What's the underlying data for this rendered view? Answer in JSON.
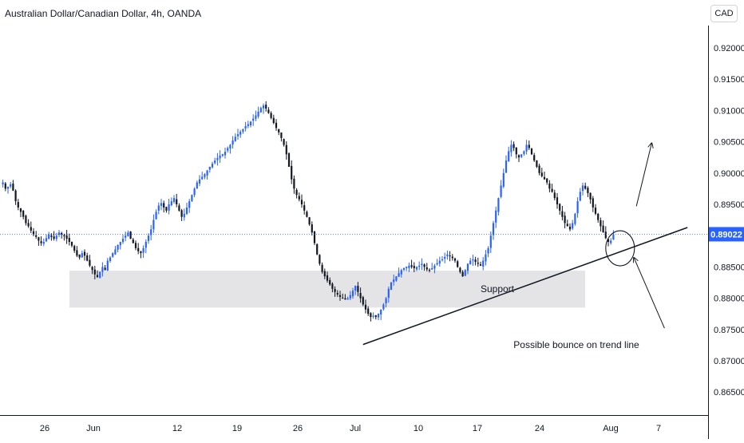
{
  "header": {
    "title": "Australian Dollar/Canadian Dollar, 4h, OANDA",
    "currency_button": "CAD"
  },
  "chart_data": {
    "type": "candlestick",
    "symbol": "Australian Dollar/Canadian Dollar",
    "interval": "4h",
    "source": "OANDA",
    "ylim": [
      0.862,
      0.9225
    ],
    "yticks": [
      "0.92000",
      "0.91500",
      "0.91000",
      "0.90500",
      "0.90000",
      "0.89500",
      "0.89022",
      "0.88500",
      "0.88000",
      "0.87500",
      "0.87000",
      "0.86500"
    ],
    "current_price": 0.89022,
    "current_price_label": "0.89022",
    "x_tick_labels": [
      "26",
      "Jun",
      "12",
      "19",
      "26",
      "Jul",
      "10",
      "17",
      "24",
      "Aug",
      "7"
    ],
    "closes": [
      0.8985,
      0.8975,
      0.8978,
      0.8982,
      0.8972,
      0.8955,
      0.8945,
      0.8938,
      0.893,
      0.892,
      0.8915,
      0.8908,
      0.8902,
      0.8898,
      0.8892,
      0.8888,
      0.889,
      0.8896,
      0.8902,
      0.8898,
      0.8895,
      0.89,
      0.8905,
      0.8902,
      0.8899,
      0.8895,
      0.889,
      0.8884,
      0.8876,
      0.8868,
      0.8865,
      0.8872,
      0.8868,
      0.886,
      0.8852,
      0.8845,
      0.8838,
      0.8834,
      0.8842,
      0.885,
      0.8845,
      0.886,
      0.8865,
      0.8872,
      0.8878,
      0.8885,
      0.889,
      0.8895,
      0.89,
      0.8905,
      0.8895,
      0.8888,
      0.888,
      0.8875,
      0.8872,
      0.888,
      0.889,
      0.89,
      0.891,
      0.8925,
      0.8938,
      0.8948,
      0.8952,
      0.8945,
      0.894,
      0.895,
      0.8955,
      0.896,
      0.895,
      0.894,
      0.893,
      0.8935,
      0.8945,
      0.8955,
      0.8965,
      0.8975,
      0.8985,
      0.899,
      0.8994,
      0.8998,
      0.9004,
      0.901,
      0.9015,
      0.902,
      0.9024,
      0.9028,
      0.903,
      0.9034,
      0.904,
      0.9045,
      0.9052,
      0.9058,
      0.9062,
      0.9066,
      0.907,
      0.9075,
      0.9078,
      0.9082,
      0.9087,
      0.9092,
      0.9098,
      0.9104,
      0.9108,
      0.9103,
      0.9096,
      0.9088,
      0.908,
      0.9072,
      0.9065,
      0.9056,
      0.9045,
      0.903,
      0.901,
      0.899,
      0.8975,
      0.8965,
      0.8958,
      0.895,
      0.894,
      0.893,
      0.8918,
      0.8905,
      0.8888,
      0.887,
      0.8855,
      0.8842,
      0.8835,
      0.8828,
      0.8822,
      0.8815,
      0.881,
      0.8806,
      0.8802,
      0.88,
      0.8798,
      0.88,
      0.8805,
      0.8812,
      0.882,
      0.881,
      0.88,
      0.879,
      0.8782,
      0.8775,
      0.877,
      0.8772,
      0.877,
      0.8775,
      0.8782,
      0.879,
      0.88,
      0.8815,
      0.8825,
      0.883,
      0.8835,
      0.884,
      0.8845,
      0.8848,
      0.885,
      0.8852,
      0.885,
      0.8848,
      0.885,
      0.8852,
      0.8855,
      0.885,
      0.8846,
      0.8844,
      0.8848,
      0.8852,
      0.8856,
      0.886,
      0.8862,
      0.8866,
      0.887,
      0.8868,
      0.8864,
      0.886,
      0.885,
      0.8842,
      0.8835,
      0.8845,
      0.8855,
      0.886,
      0.8862,
      0.8858,
      0.8855,
      0.8852,
      0.886,
      0.887,
      0.888,
      0.89,
      0.892,
      0.894,
      0.896,
      0.898,
      0.9,
      0.902,
      0.9035,
      0.9045,
      0.904,
      0.903,
      0.9025,
      0.903,
      0.9035,
      0.9045,
      0.904,
      0.903,
      0.902,
      0.901,
      0.9,
      0.8995,
      0.899,
      0.8985,
      0.8975,
      0.897,
      0.896,
      0.895,
      0.894,
      0.893,
      0.892,
      0.8915,
      0.891,
      0.892,
      0.8935,
      0.8955,
      0.897,
      0.898,
      0.8975,
      0.8968,
      0.8958,
      0.8945,
      0.8935,
      0.8925,
      0.8915,
      0.8905,
      0.8896,
      0.889,
      0.8892,
      0.8902
    ],
    "annotations": {
      "support_zone": {
        "top": 0.8844,
        "bottom": 0.8785,
        "label": "Support"
      },
      "trend_line": [
        {
          "bar": 141,
          "price": 0.8726
        },
        {
          "bar": 268,
          "price": 0.8913
        }
      ],
      "arrow_up": {
        "from": {
          "bar": 248,
          "price": 0.8947
        },
        "to": {
          "bar": 254,
          "price": 0.9048
        }
      },
      "arrow_down": {
        "from": {
          "bar": 259,
          "price": 0.8752
        },
        "to": {
          "bar": 247,
          "price": 0.8865
        }
      },
      "circle": {
        "bar": 241,
        "price": 0.889
      },
      "note": "Possible bounce on trend line"
    }
  }
}
